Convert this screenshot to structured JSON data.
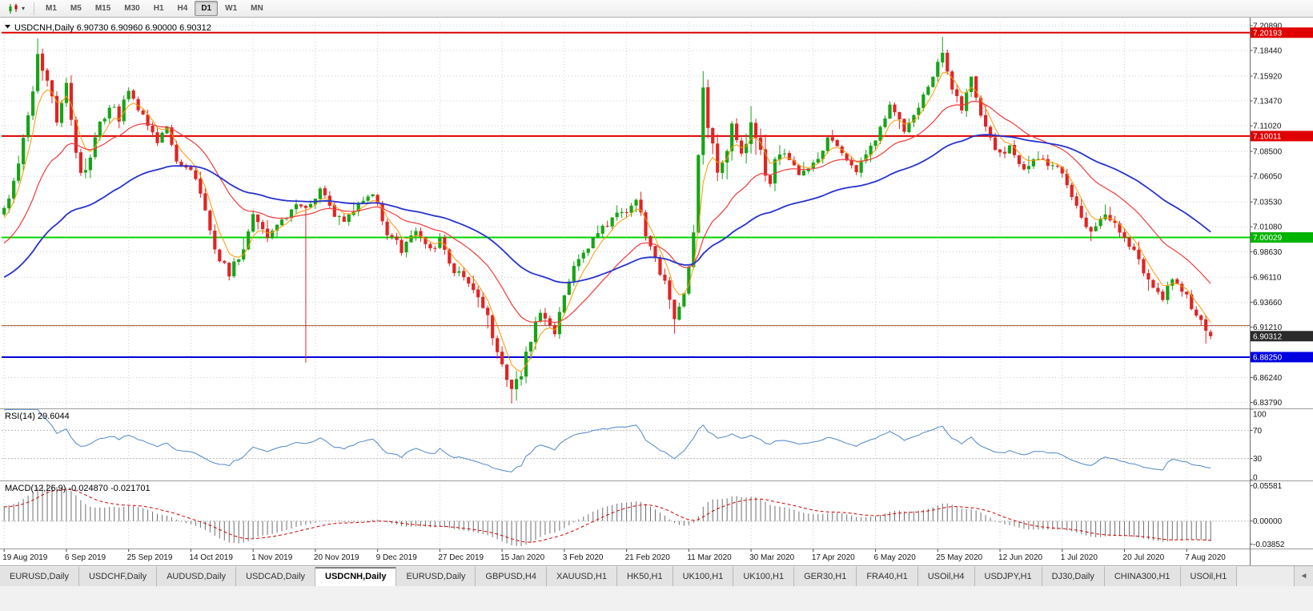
{
  "toolbar": {
    "timeframes": [
      "M1",
      "M5",
      "M15",
      "M30",
      "H1",
      "H4",
      "D1",
      "W1",
      "MN"
    ],
    "active_timeframe": "D1",
    "chart_type_caret": "▾"
  },
  "window_header": {
    "collapse_icon": "▼",
    "text": "USDCNH,Daily 6.90730 6.90960 6.90000 6.90312"
  },
  "rsi_panel": {
    "label": "RSI(14) 29.6044",
    "axis_labels": [
      "100",
      "70",
      "30",
      "0"
    ]
  },
  "macd_panel": {
    "label": "MACD(12,26,9) -0.024870 -0.021701",
    "axis_max": "0.05581",
    "axis_zero": "0.00000",
    "axis_min": "-0.03852"
  },
  "price_axis": {
    "labels": [
      {
        "v": "7.20890"
      },
      {
        "v": "7.20193",
        "badge": "#e00000",
        "name": "resistance-badge"
      },
      {
        "v": "7.18440"
      },
      {
        "v": "7.15920"
      },
      {
        "v": "7.13470"
      },
      {
        "v": "7.11020"
      },
      {
        "v": "7.10011",
        "badge": "#e00000",
        "name": "resistance-badge"
      },
      {
        "v": "7.08500"
      },
      {
        "v": "7.06050"
      },
      {
        "v": "7.03530"
      },
      {
        "v": "7.01080"
      },
      {
        "v": "7.00029",
        "badge": "#00b400",
        "name": "support-badge"
      },
      {
        "v": "6.98630"
      },
      {
        "v": "6.96110"
      },
      {
        "v": "6.93660"
      },
      {
        "v": "6.91210"
      },
      {
        "v": "6.90312",
        "badge": "#2b2b2b",
        "name": "current-price-badge"
      },
      {
        "v": "6.88250",
        "badge": "#0000e0",
        "name": "support-badge"
      },
      {
        "v": "6.86240"
      },
      {
        "v": "6.83790"
      }
    ]
  },
  "date_axis": [
    "19 Aug 2019",
    "6 Sep 2019",
    "25 Sep 2019",
    "14 Oct 2019",
    "1 Nov 2019",
    "20 Nov 2019",
    "9 Dec 2019",
    "27 Dec 2019",
    "15 Jan 2020",
    "3 Feb 2020",
    "21 Feb 2020",
    "11 Mar 2020",
    "30 Mar 2020",
    "17 Apr 2020",
    "6 May 2020",
    "25 May 2020",
    "12 Jun 2020",
    "1 Jul 2020",
    "20 Jul 2020",
    "7 Aug 2020"
  ],
  "tabs": {
    "items": [
      "EURUSD,Daily",
      "USDCHF,Daily",
      "AUDUSD,Daily",
      "USDCAD,Daily",
      "USDCNH,Daily",
      "EURUSD,Daily",
      "GBPUSD,H4",
      "XAUUSD,H1",
      "HK50,H1",
      "UK100,H1",
      "UK100,H1",
      "GER30,H1",
      "FRA40,H1",
      "USOil,H4",
      "USDJPY,H1",
      "DJ30,Daily",
      "CHINA300,H1",
      "USOil,H1"
    ],
    "active_index": 4,
    "scroll_arrow": "◄"
  },
  "chart_data": {
    "type": "candlestick",
    "symbol": "USDCNH",
    "timeframe": "Daily",
    "last_candle": {
      "open": 6.9073,
      "high": 6.9096,
      "low": 6.9,
      "close": 6.90312
    },
    "visible_candles": 253,
    "warmup_candles": 40,
    "candles_per_label": 13,
    "price_range_visible": [
      6.832,
      7.212
    ],
    "up_color": "#17a417",
    "down_color": "#e02424",
    "seed": 20200814,
    "noise_base": 0.0055,
    "anchors": [
      [
        -40,
        6.898
      ],
      [
        -28,
        6.94
      ],
      [
        -14,
        6.985
      ],
      [
        -4,
        7.01
      ],
      [
        0,
        7.028
      ],
      [
        3,
        7.07
      ],
      [
        5,
        7.12
      ],
      [
        7,
        7.178
      ],
      [
        9,
        7.16
      ],
      [
        11,
        7.115
      ],
      [
        13,
        7.148
      ],
      [
        15,
        7.078
      ],
      [
        17,
        7.062
      ],
      [
        19,
        7.1
      ],
      [
        22,
        7.132
      ],
      [
        24,
        7.118
      ],
      [
        26,
        7.148
      ],
      [
        29,
        7.118
      ],
      [
        32,
        7.092
      ],
      [
        34,
        7.112
      ],
      [
        36,
        7.078
      ],
      [
        39,
        7.066
      ],
      [
        41,
        7.042
      ],
      [
        44,
        6.988
      ],
      [
        47,
        6.963
      ],
      [
        50,
        6.992
      ],
      [
        52,
        7.021
      ],
      [
        55,
        7.001
      ],
      [
        58,
        7.018
      ],
      [
        61,
        7.032
      ],
      [
        63,
        7.027
      ],
      [
        66,
        7.048
      ],
      [
        68,
        7.031
      ],
      [
        71,
        7.012
      ],
      [
        74,
        7.036
      ],
      [
        77,
        7.043
      ],
      [
        80,
        7.006
      ],
      [
        83,
        6.988
      ],
      [
        86,
        7.008
      ],
      [
        89,
        6.986
      ],
      [
        91,
        6.998
      ],
      [
        94,
        6.968
      ],
      [
        97,
        6.957
      ],
      [
        100,
        6.937
      ],
      [
        102,
        6.901
      ],
      [
        104,
        6.871
      ],
      [
        106,
        6.847
      ],
      [
        108,
        6.866
      ],
      [
        110,
        6.903
      ],
      [
        112,
        6.931
      ],
      [
        115,
        6.907
      ],
      [
        118,
        6.961
      ],
      [
        121,
        6.986
      ],
      [
        124,
        7.003
      ],
      [
        127,
        7.021
      ],
      [
        130,
        7.028
      ],
      [
        132,
        7.041
      ],
      [
        134,
        7.004
      ],
      [
        136,
        6.977
      ],
      [
        138,
        6.954
      ],
      [
        140,
        6.917
      ],
      [
        142,
        6.942
      ],
      [
        144,
        7.012
      ],
      [
        146,
        7.143
      ],
      [
        147,
        7.108
      ],
      [
        149,
        7.062
      ],
      [
        151,
        7.091
      ],
      [
        152,
        7.117
      ],
      [
        154,
        7.086
      ],
      [
        156,
        7.111
      ],
      [
        158,
        7.079
      ],
      [
        160,
        7.057
      ],
      [
        162,
        7.091
      ],
      [
        164,
        7.077
      ],
      [
        166,
        7.061
      ],
      [
        169,
        7.071
      ],
      [
        172,
        7.095
      ],
      [
        175,
        7.087
      ],
      [
        178,
        7.065
      ],
      [
        180,
        7.081
      ],
      [
        182,
        7.097
      ],
      [
        185,
        7.127
      ],
      [
        188,
        7.107
      ],
      [
        191,
        7.131
      ],
      [
        194,
        7.161
      ],
      [
        196,
        7.177
      ],
      [
        198,
        7.151
      ],
      [
        200,
        7.131
      ],
      [
        202,
        7.154
      ],
      [
        204,
        7.121
      ],
      [
        206,
        7.097
      ],
      [
        208,
        7.081
      ],
      [
        210,
        7.091
      ],
      [
        213,
        7.065
      ],
      [
        216,
        7.081
      ],
      [
        219,
        7.071
      ],
      [
        221,
        7.065
      ],
      [
        224,
        7.031
      ],
      [
        227,
        7.005
      ],
      [
        230,
        7.027
      ],
      [
        232,
        7.015
      ],
      [
        234,
        7.001
      ],
      [
        237,
        6.977
      ],
      [
        240,
        6.951
      ],
      [
        242,
        6.937
      ],
      [
        244,
        6.961
      ],
      [
        246,
        6.951
      ],
      [
        248,
        6.934
      ],
      [
        250,
        6.917
      ],
      [
        252,
        6.9031
      ]
    ],
    "wick_overrides": [
      {
        "i": 7,
        "high": 7.1962
      },
      {
        "i": 63,
        "low": 6.877
      },
      {
        "i": 106,
        "low": 6.8369
      },
      {
        "i": 140,
        "low": 6.9055
      },
      {
        "i": 146,
        "high": 7.164
      },
      {
        "i": 196,
        "high": 7.1978
      },
      {
        "i": 227,
        "low": 6.9968
      },
      {
        "i": 251,
        "low": 6.8958
      }
    ],
    "volatility_zones": [
      [
        -40,
        -1,
        0.7
      ],
      [
        3,
        18,
        1.6
      ],
      [
        100,
        112,
        1.7
      ],
      [
        143,
        162,
        2.2
      ],
      [
        194,
        205,
        1.4
      ],
      [
        224,
        252,
        1.1
      ]
    ],
    "moving_averages": [
      {
        "type": "EMA",
        "period": 5,
        "color": "#ff9900",
        "width": 1
      },
      {
        "type": "EMA",
        "period": 21,
        "color": "#f23a3a",
        "width": 1.2
      },
      {
        "type": "EMA",
        "period": 55,
        "color": "#2733cc",
        "width": 1.8
      }
    ],
    "horizontal_lines": [
      {
        "price": 7.20193,
        "color": "#e00000",
        "width": 2
      },
      {
        "price": 7.10011,
        "color": "#e00000",
        "width": 2
      },
      {
        "price": 7.00029,
        "color": "#00d400",
        "width": 2
      },
      {
        "price": 6.9135,
        "color": "#a0522d",
        "width": 1
      },
      {
        "price": 6.8825,
        "color": "#0000e0",
        "width": 2
      }
    ],
    "indicators": {
      "rsi": {
        "period": 14,
        "current": 29.6044,
        "levels": [
          70,
          30
        ],
        "color": "#4f86c6"
      },
      "macd": {
        "fast": 12,
        "slow": 26,
        "signal": 9,
        "current_macd": -0.02487,
        "current_signal": -0.021701,
        "histogram_color": "#6e6e6e",
        "signal_color": "#d00000",
        "scale_max": 0.05581,
        "scale_min": -0.03852
      }
    }
  }
}
